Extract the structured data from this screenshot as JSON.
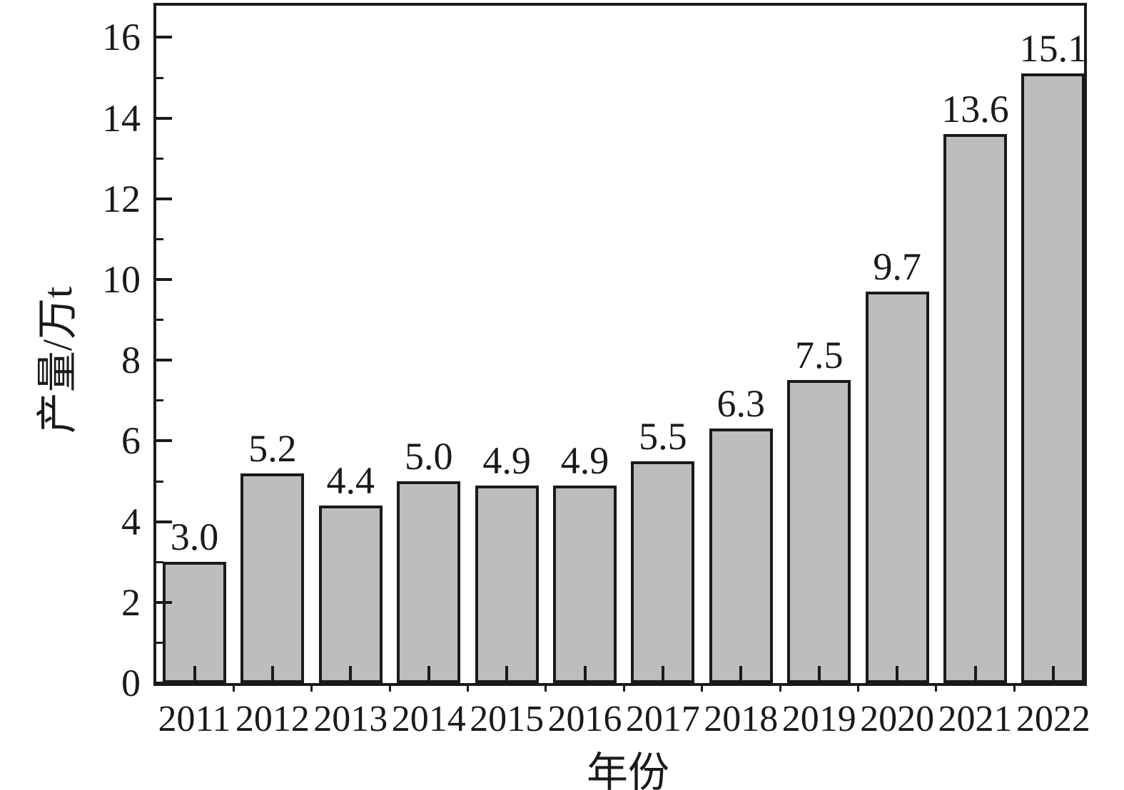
{
  "chart_data": {
    "type": "bar",
    "title": "",
    "categories": [
      "2011",
      "2012",
      "2013",
      "2014",
      "2015",
      "2016",
      "2017",
      "2018",
      "2019",
      "2020",
      "2021",
      "2022"
    ],
    "values": [
      3.0,
      5.2,
      4.4,
      5.0,
      4.9,
      4.9,
      5.5,
      6.3,
      7.5,
      9.7,
      13.6,
      15.1
    ],
    "value_labels": [
      "3.0",
      "5.2",
      "4.4",
      "5.0",
      "4.9",
      "4.9",
      "5.5",
      "6.3",
      "7.5",
      "9.7",
      "13.6",
      "15.1"
    ],
    "xlabel": "年份",
    "ylabel": "产量/万t",
    "ylim": [
      0,
      16
    ],
    "y_major_ticks": [
      0,
      2,
      4,
      6,
      8,
      10,
      12,
      14,
      16
    ],
    "y_minor_ticks": [
      1,
      3,
      5,
      7,
      9,
      11,
      13,
      15
    ],
    "grid": false,
    "legend": "none",
    "colors": {
      "bar_fill": "#bdbdbd",
      "bar_border": "#1a1a1a",
      "axis": "#1a1a1a",
      "text": "#1a1a1a",
      "background": "#ffffff"
    }
  }
}
